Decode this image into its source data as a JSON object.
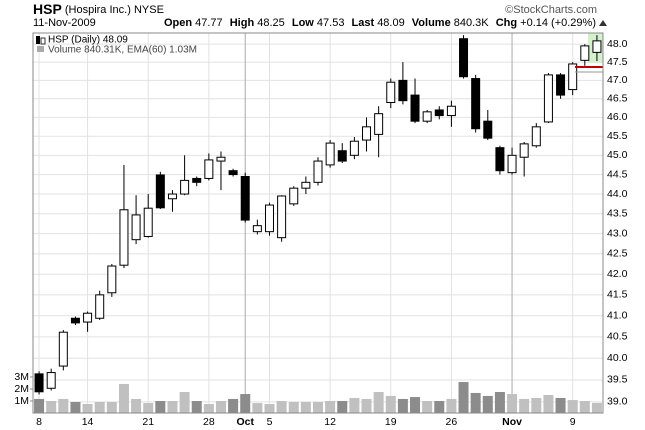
{
  "header": {
    "symbol": "HSP",
    "company": "(Hospira Inc.)",
    "exchange": "NYSE",
    "date": "11-Nov-2009",
    "open_label": "Open",
    "open": "47.77",
    "high_label": "High",
    "high": "48.25",
    "low_label": "Low",
    "low": "47.53",
    "last_label": "Last",
    "last": "48.09",
    "volume_label": "Volume",
    "volume": "840.3K",
    "chg_label": "Chg",
    "chg": "+0.14 (+0.29%)",
    "copyright": "©StockCharts.com"
  },
  "chart_data": {
    "type": "candlestick",
    "legend_price": "HSP (Daily) 48.09",
    "legend_volume": "Volume 840.31K, EMA(60) 1.03M",
    "categories": [
      "8",
      null,
      null,
      null,
      "14",
      null,
      null,
      null,
      null,
      "21",
      null,
      null,
      null,
      null,
      "28",
      null,
      null,
      "Oct",
      null,
      "5",
      null,
      null,
      null,
      null,
      "12",
      null,
      null,
      null,
      null,
      "19",
      null,
      null,
      null,
      null,
      "26",
      null,
      null,
      null,
      null,
      "Nov",
      null,
      null,
      null,
      null,
      "9",
      null,
      null
    ],
    "open": [
      39.64,
      39.31,
      39.82,
      40.94,
      40.85,
      40.94,
      41.55,
      42.22,
      42.85,
      42.93,
      44.49,
      43.88,
      44.0,
      44.4,
      44.4,
      44.85,
      44.6,
      44.45,
      43.05,
      43.05,
      42.9,
      43.75,
      44.15,
      44.3,
      44.75,
      45.12,
      45.0,
      45.4,
      45.55,
      46.4,
      47.0,
      46.6,
      45.9,
      46.2,
      46.05,
      48.15,
      47.05,
      45.9,
      45.2,
      44.55,
      44.95,
      45.25,
      45.88,
      47.15,
      46.75,
      47.55,
      47.77
    ],
    "high": [
      39.7,
      39.76,
      40.66,
      40.98,
      41.1,
      41.6,
      42.25,
      44.75,
      43.97,
      44.0,
      44.57,
      44.1,
      45.0,
      44.45,
      45.05,
      45.1,
      44.65,
      44.55,
      43.35,
      43.78,
      43.97,
      44.2,
      44.45,
      44.95,
      45.4,
      45.32,
      45.48,
      46.0,
      46.3,
      47.05,
      47.5,
      47.05,
      46.2,
      46.3,
      46.45,
      48.25,
      47.15,
      46.2,
      45.25,
      45.2,
      45.35,
      45.85,
      47.2,
      47.2,
      47.5,
      48.0,
      48.25
    ],
    "low": [
      39.17,
      39.26,
      39.72,
      40.78,
      40.62,
      40.9,
      41.45,
      42.15,
      42.74,
      42.9,
      43.62,
      43.55,
      43.97,
      44.2,
      44.35,
      44.1,
      44.45,
      43.28,
      42.98,
      42.95,
      42.8,
      43.7,
      44.0,
      44.22,
      44.68,
      44.8,
      44.9,
      45.1,
      44.95,
      46.25,
      46.35,
      45.85,
      45.85,
      45.95,
      45.75,
      47.05,
      45.6,
      45.4,
      44.5,
      44.5,
      44.45,
      45.2,
      45.85,
      46.5,
      46.6,
      47.4,
      47.53
    ],
    "close": [
      39.23,
      39.67,
      40.61,
      40.83,
      41.06,
      41.5,
      42.2,
      43.6,
      43.47,
      43.64,
      43.65,
      44.0,
      44.35,
      44.3,
      44.88,
      44.95,
      44.5,
      43.34,
      43.2,
      43.72,
      43.95,
      44.15,
      44.3,
      44.85,
      45.32,
      44.85,
      45.37,
      45.75,
      46.1,
      46.95,
      46.45,
      45.9,
      46.15,
      46.05,
      46.3,
      47.1,
      45.7,
      45.45,
      44.6,
      45.0,
      45.3,
      45.75,
      47.15,
      46.6,
      47.45,
      47.95,
      48.09
    ],
    "volume": [
      1170000,
      1000000,
      1170000,
      920000,
      750000,
      920000,
      920000,
      2420000,
      1170000,
      830000,
      1000000,
      1000000,
      1750000,
      1000000,
      750000,
      1000000,
      1170000,
      1580000,
      830000,
      750000,
      1000000,
      920000,
      920000,
      920000,
      1000000,
      1000000,
      1250000,
      1170000,
      1750000,
      1420000,
      1170000,
      1330000,
      1000000,
      1000000,
      1170000,
      2580000,
      1670000,
      1420000,
      1750000,
      1580000,
      1170000,
      1250000,
      1500000,
      1250000,
      1080000,
      1000000,
      840310
    ],
    "log_scale": true,
    "ylim": [
      38.75,
      48.31
    ],
    "yticks": [
      {
        "value": 39,
        "label": "39.0"
      },
      39.5,
      {
        "value": 40,
        "label": "40.0"
      },
      40.5,
      {
        "value": 41,
        "label": "41.0"
      },
      41.5,
      {
        "value": 42,
        "label": "42.0"
      },
      42.5,
      {
        "value": 43,
        "label": "43.0"
      },
      43.5,
      {
        "value": 44,
        "label": "44.0"
      },
      44.5,
      {
        "value": 45,
        "label": "45.0"
      },
      45.5,
      {
        "value": 46,
        "label": "46.0"
      },
      46.5,
      {
        "value": 47,
        "label": "47.0"
      },
      47.5,
      {
        "value": 48,
        "label": "48.0"
      }
    ],
    "volume_lim": [
      0,
      31670000
    ],
    "volume_ticks": [
      {
        "value": 1000000,
        "label": "1M"
      },
      {
        "value": 2000000,
        "label": "2M"
      },
      {
        "value": 3000000,
        "label": "3M"
      }
    ],
    "grid": true,
    "up_color": "#ffffff",
    "down_color": "#000000",
    "volume_up_color": "#c0c0c0",
    "volume_down_color": "#8c8c8c"
  }
}
